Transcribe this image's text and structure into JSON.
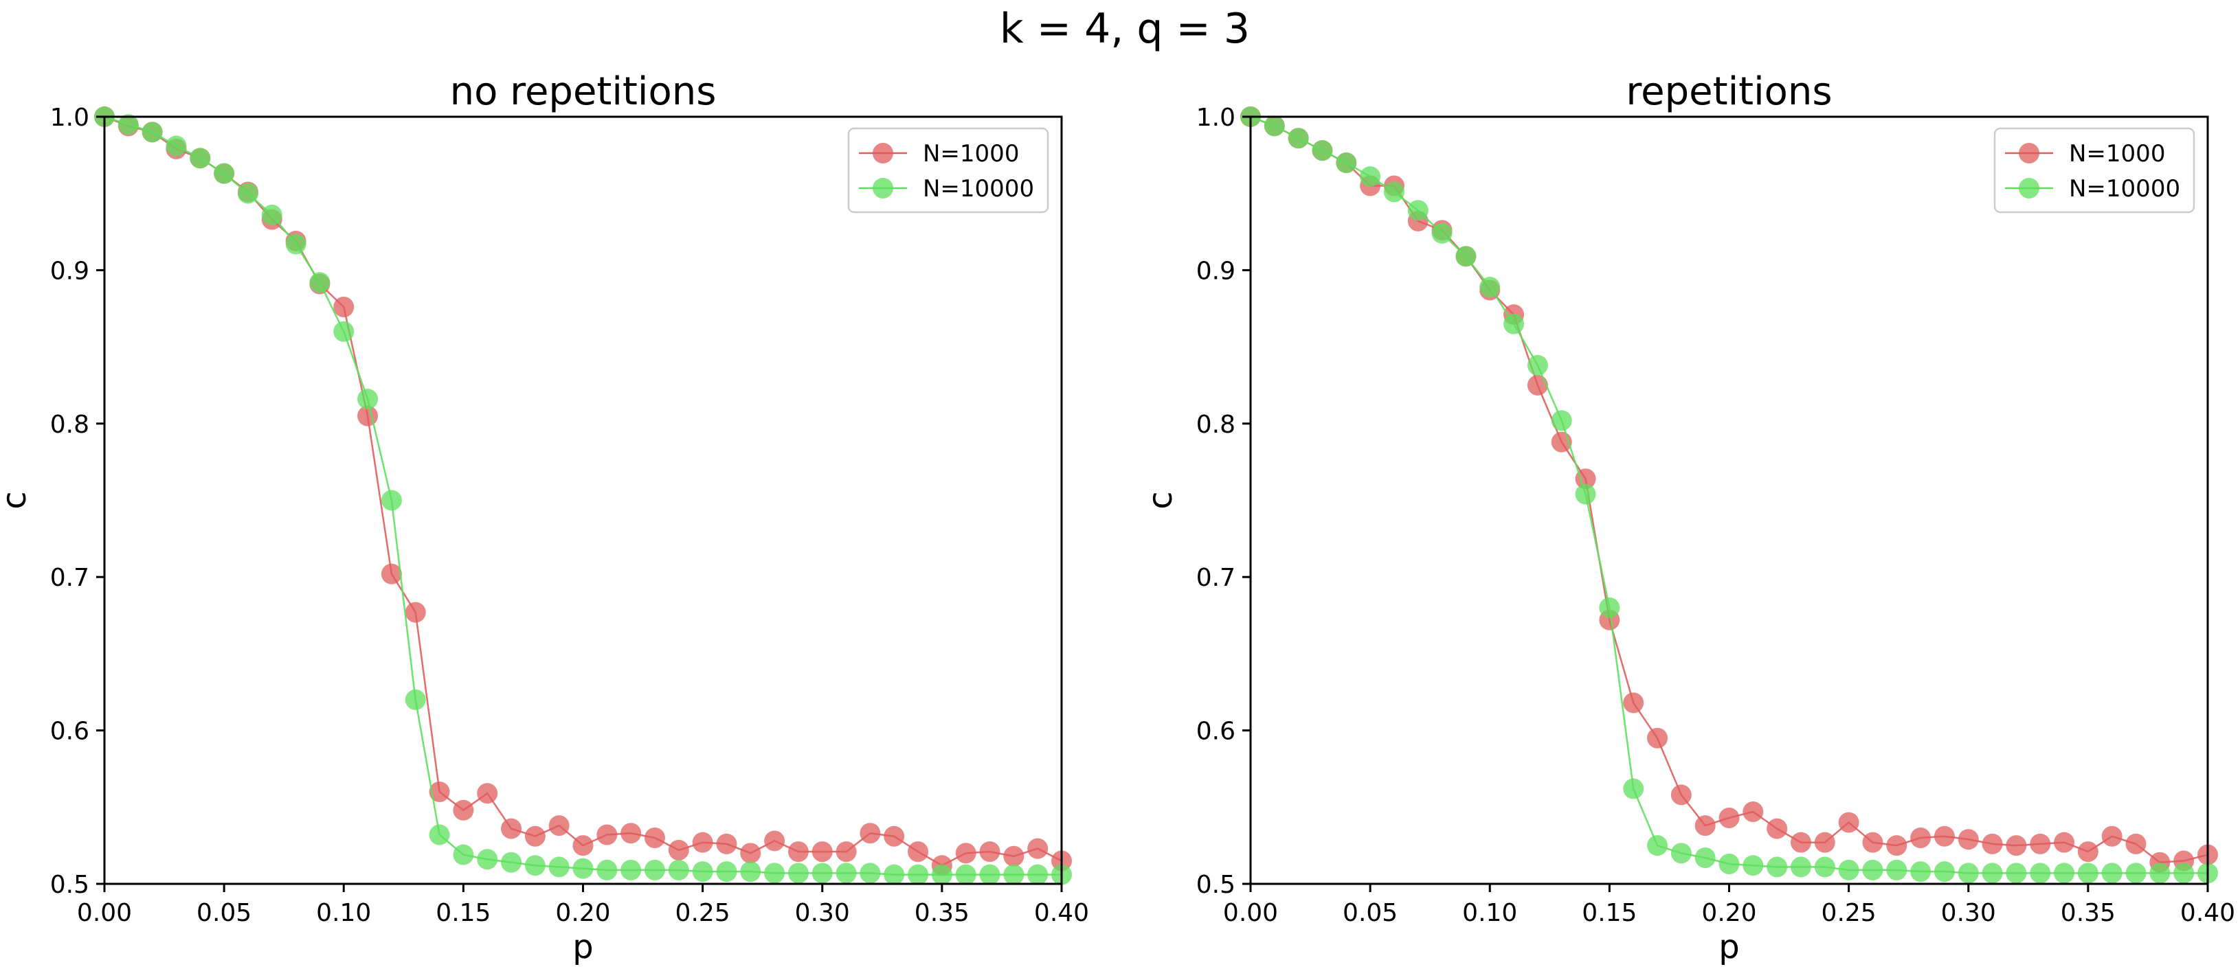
{
  "suptitle": "k = 4,  q = 3",
  "colors": {
    "red": "#e05c5c",
    "green": "#5ce05c",
    "olive": "#7a9a3a"
  },
  "chart_data": [
    {
      "type": "line",
      "title": "no repetitions",
      "xlabel": "p",
      "ylabel": "c",
      "xlim": [
        0.0,
        0.4
      ],
      "ylim": [
        0.5,
        1.0
      ],
      "xticks": [
        "0.00",
        "0.05",
        "0.10",
        "0.15",
        "0.20",
        "0.25",
        "0.30",
        "0.35",
        "0.40"
      ],
      "yticks": [
        "0.5",
        "0.6",
        "0.7",
        "0.8",
        "0.9",
        "1.0"
      ],
      "legend_position": "top-right",
      "x": [
        0.0,
        0.01,
        0.02,
        0.03,
        0.04,
        0.05,
        0.06,
        0.07,
        0.08,
        0.09,
        0.1,
        0.11,
        0.12,
        0.13,
        0.14,
        0.15,
        0.16,
        0.17,
        0.18,
        0.19,
        0.2,
        0.21,
        0.22,
        0.23,
        0.24,
        0.25,
        0.26,
        0.27,
        0.28,
        0.29,
        0.3,
        0.31,
        0.32,
        0.33,
        0.34,
        0.35,
        0.36,
        0.37,
        0.38,
        0.39,
        0.4
      ],
      "series": [
        {
          "name": "N=1000",
          "color": "#e05c5c",
          "values": [
            1.0,
            0.994,
            0.99,
            0.979,
            0.973,
            0.963,
            0.951,
            0.933,
            0.919,
            0.891,
            0.876,
            0.805,
            0.702,
            0.677,
            0.56,
            0.548,
            0.559,
            0.536,
            0.531,
            0.538,
            0.525,
            0.532,
            0.533,
            0.53,
            0.522,
            0.527,
            0.526,
            0.52,
            0.528,
            0.521,
            0.521,
            0.521,
            0.533,
            0.531,
            0.521,
            0.512,
            0.52,
            0.521,
            0.518,
            0.523,
            0.515
          ]
        },
        {
          "name": "N=10000",
          "color": "#5ce05c",
          "values": [
            1.0,
            0.995,
            0.99,
            0.981,
            0.973,
            0.963,
            0.95,
            0.936,
            0.917,
            0.892,
            0.86,
            0.816,
            0.75,
            0.62,
            0.532,
            0.519,
            0.516,
            0.514,
            0.512,
            0.511,
            0.51,
            0.509,
            0.509,
            0.509,
            0.509,
            0.508,
            0.508,
            0.508,
            0.507,
            0.507,
            0.507,
            0.507,
            0.507,
            0.506,
            0.506,
            0.506,
            0.506,
            0.506,
            0.506,
            0.506,
            0.506
          ]
        }
      ]
    },
    {
      "type": "line",
      "title": "repetitions",
      "xlabel": "p",
      "ylabel": "c",
      "xlim": [
        0.0,
        0.4
      ],
      "ylim": [
        0.5,
        1.0
      ],
      "xticks": [
        "0.00",
        "0.05",
        "0.10",
        "0.15",
        "0.20",
        "0.25",
        "0.30",
        "0.35",
        "0.40"
      ],
      "yticks": [
        "0.5",
        "0.6",
        "0.7",
        "0.8",
        "0.9",
        "1.0"
      ],
      "legend_position": "top-right",
      "x": [
        0.0,
        0.01,
        0.02,
        0.03,
        0.04,
        0.05,
        0.06,
        0.07,
        0.08,
        0.09,
        0.1,
        0.11,
        0.12,
        0.13,
        0.14,
        0.15,
        0.16,
        0.17,
        0.18,
        0.19,
        0.2,
        0.21,
        0.22,
        0.23,
        0.24,
        0.25,
        0.26,
        0.27,
        0.28,
        0.29,
        0.3,
        0.31,
        0.32,
        0.33,
        0.34,
        0.35,
        0.36,
        0.37,
        0.38,
        0.39,
        0.4
      ],
      "series": [
        {
          "name": "N=1000",
          "color": "#e05c5c",
          "values": [
            1.0,
            0.994,
            0.986,
            0.978,
            0.97,
            0.955,
            0.955,
            0.932,
            0.926,
            0.909,
            0.887,
            0.871,
            0.825,
            0.788,
            0.764,
            0.672,
            0.618,
            0.595,
            0.558,
            0.538,
            0.543,
            0.547,
            0.536,
            0.527,
            0.527,
            0.54,
            0.527,
            0.525,
            0.53,
            0.531,
            0.529,
            0.526,
            0.525,
            0.526,
            0.527,
            0.521,
            0.531,
            0.526,
            0.514,
            0.515,
            0.519
          ]
        },
        {
          "name": "N=10000",
          "color": "#5ce05c",
          "values": [
            1.0,
            0.994,
            0.986,
            0.978,
            0.97,
            0.961,
            0.951,
            0.939,
            0.924,
            0.909,
            0.889,
            0.865,
            0.838,
            0.802,
            0.754,
            0.68,
            0.562,
            0.525,
            0.52,
            0.517,
            0.513,
            0.512,
            0.511,
            0.511,
            0.511,
            0.509,
            0.509,
            0.509,
            0.508,
            0.508,
            0.507,
            0.507,
            0.507,
            0.507,
            0.507,
            0.507,
            0.507,
            0.507,
            0.507,
            0.507,
            0.507
          ]
        }
      ]
    }
  ]
}
